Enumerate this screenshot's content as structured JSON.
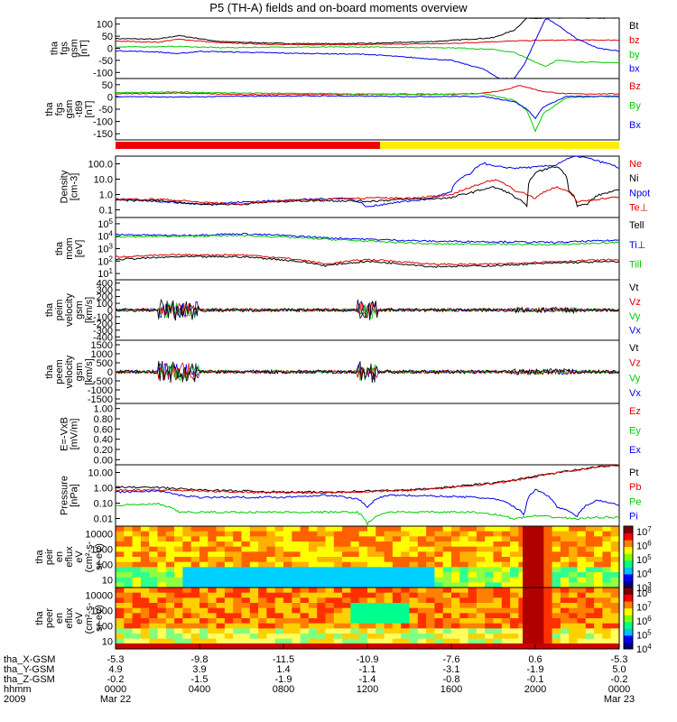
{
  "chart_data": {
    "title": "P5 (TH-A) fields and on-board moments overview",
    "panels": [
      {
        "id": "fgs",
        "type": "line",
        "ylabel": [
          "tha",
          "fgs",
          "gsm",
          "[nT]"
        ],
        "yticks": [
          "100",
          "50",
          "0",
          "-50",
          "-100"
        ],
        "ylim": [
          -100,
          100
        ],
        "legend": [
          {
            "name": "Bt",
            "color": "#000000"
          },
          {
            "name": "bz",
            "color": "#dd0000"
          },
          {
            "name": "by",
            "color": "#00cc00"
          },
          {
            "name": "bx",
            "color": "#0000ee"
          }
        ],
        "series": [
          {
            "name": "Bt",
            "color": "#000000",
            "x": [
              0,
              2,
              3,
              5,
              8,
              10,
              12,
              15,
              16,
              18,
              19,
              19.6,
              20.3,
              21,
              22,
              24
            ],
            "y": [
              32,
              30,
              42,
              22,
              16,
              15,
              16,
              22,
              26,
              35,
              60,
              100,
              100,
              100,
              100,
              100
            ]
          },
          {
            "name": "bz",
            "color": "#dd0000",
            "x": [
              0,
              2,
              3,
              5,
              8,
              12,
              16,
              18,
              20,
              22,
              24
            ],
            "y": [
              24,
              20,
              30,
              18,
              12,
              12,
              16,
              22,
              26,
              27,
              27
            ]
          },
          {
            "name": "by",
            "color": "#00cc00",
            "x": [
              0,
              3,
              5,
              8,
              12,
              16,
              18,
              19,
              19.5,
              20.5,
              21,
              22,
              24
            ],
            "y": [
              4,
              6,
              2,
              4,
              4,
              2,
              -4,
              -14,
              -30,
              -60,
              -40,
              -45,
              -48
            ]
          },
          {
            "name": "bx",
            "color": "#0000ee",
            "x": [
              0,
              2,
              3,
              4,
              8,
              12,
              16,
              17.5,
              18.3,
              19,
              19.5,
              20.5,
              21,
              22,
              23,
              24
            ],
            "y": [
              -8,
              -12,
              -18,
              -10,
              -16,
              -20,
              -40,
              -68,
              -100,
              -100,
              -50,
              100,
              80,
              30,
              0,
              -10
            ]
          }
        ]
      },
      {
        "id": "fgs_t89",
        "type": "line",
        "ylabel": [
          "tha",
          "fgs",
          "gsm",
          "-t89",
          "[nT]"
        ],
        "yticks": [
          "50",
          "0",
          "-50",
          "-100",
          "-150"
        ],
        "ylim": [
          -175,
          65
        ],
        "legend": [
          {
            "name": "Bz",
            "color": "#dd0000"
          },
          {
            "name": "By",
            "color": "#00cc00"
          },
          {
            "name": "Bx",
            "color": "#0000ee"
          }
        ],
        "series": [
          {
            "name": "Bz",
            "color": "#dd0000",
            "x": [
              0,
              3,
              6,
              10,
              14,
              16,
              17.5,
              18.5,
              19.3,
              20.3,
              21.5,
              24
            ],
            "y": [
              5,
              8,
              2,
              3,
              4,
              3,
              8,
              20,
              38,
              15,
              5,
              5
            ]
          },
          {
            "name": "By",
            "color": "#00cc00",
            "x": [
              0,
              3,
              6,
              10,
              14,
              16,
              17.5,
              19,
              19.6,
              20,
              20.4,
              21.5,
              24
            ],
            "y": [
              10,
              12,
              8,
              6,
              2,
              4,
              6,
              -20,
              -60,
              -140,
              -70,
              -10,
              -2
            ]
          },
          {
            "name": "Bx",
            "color": "#0000ee",
            "x": [
              0,
              3,
              6,
              10,
              14,
              16,
              17.5,
              19,
              19.6,
              20,
              20.4,
              21.5,
              24
            ],
            "y": [
              -5,
              -8,
              -4,
              -3,
              -5,
              -5,
              -5,
              -25,
              -55,
              -90,
              -45,
              -5,
              -5
            ]
          }
        ]
      },
      {
        "id": "density",
        "type": "line",
        "log": true,
        "ylabel": [
          "Density",
          "[cm-3]"
        ],
        "yticks": [
          "100.0",
          "10.0",
          "1.0",
          "0.1"
        ],
        "ylim": [
          0.05,
          200
        ],
        "legend": [
          {
            "name": "Ne",
            "color": "#dd0000"
          },
          {
            "name": "Ni",
            "color": "#000000"
          },
          {
            "name": "Npot",
            "color": "#0000ee"
          },
          {
            "name": "Te⊥",
            "color": "#dd0000"
          }
        ],
        "series": [
          {
            "name": "Npot",
            "color": "#0000ee",
            "x": [
              0,
              4,
              8,
              11,
              12,
              15,
              16,
              17,
              17.5,
              18,
              19,
              20,
              21,
              22,
              23,
              24
            ],
            "y": [
              0.6,
              0.3,
              0.5,
              0.7,
              0.2,
              0.6,
              1.5,
              20,
              80,
              50,
              40,
              45,
              60,
              200,
              100,
              40
            ]
          },
          {
            "name": "Ni",
            "color": "#000000",
            "x": [
              0,
              2,
              4,
              6,
              8,
              10,
              12,
              14,
              16,
              17,
              18,
              19,
              19.6,
              20,
              21,
              21.6,
              22,
              22.5,
              23,
              24
            ],
            "y": [
              0.5,
              0.5,
              0.3,
              0.3,
              0.45,
              0.5,
              0.45,
              0.6,
              0.7,
              1.5,
              3,
              0.8,
              0.2,
              20,
              50,
              2,
              0.25,
              0.3,
              1,
              2
            ]
          },
          {
            "name": "Ne",
            "color": "#dd0000",
            "x": [
              0,
              2,
              4,
              6,
              8,
              10,
              12,
              14,
              16,
              17,
              18,
              19,
              20,
              21,
              22,
              23,
              24
            ],
            "y": [
              0.6,
              0.6,
              0.4,
              0.3,
              0.5,
              0.6,
              0.7,
              0.7,
              1,
              3,
              8,
              2,
              0.6,
              3,
              0.4,
              0.6,
              0.8
            ]
          }
        ]
      },
      {
        "id": "temp",
        "type": "line",
        "log": true,
        "ylabel": [
          "tha",
          "mom",
          "[eV]"
        ],
        "yticks": [
          "10^5",
          "10^4",
          "10^3",
          "10^2",
          "10^1"
        ],
        "ylim": [
          10,
          100000
        ],
        "legend": [
          {
            "name": "Tell",
            "color": "#000000"
          },
          {
            "name": "Ti⊥",
            "color": "#0000ee"
          },
          {
            "name": "Till",
            "color": "#00cc00"
          }
        ],
        "series": [
          {
            "name": "Ti",
            "color": "#0000ee",
            "x": [
              0,
              3,
              6,
              10,
              12,
              15,
              18,
              21,
              24
            ],
            "y": [
              8000,
              7000,
              9000,
              5000,
              4000,
              3000,
              2800,
              2500,
              3500
            ]
          },
          {
            "name": "Till",
            "color": "#00cc00",
            "x": [
              0,
              3,
              6,
              10,
              12,
              15,
              18,
              21,
              24
            ],
            "y": [
              6000,
              6000,
              7000,
              4000,
              3000,
              2000,
              2000,
              1800,
              2500
            ]
          },
          {
            "name": "Te",
            "color": "#dd0000",
            "x": [
              0,
              3,
              6,
              10,
              12,
              15,
              18,
              21,
              24
            ],
            "y": [
              300,
              400,
              400,
              100,
              200,
              100,
              100,
              150,
              200
            ]
          },
          {
            "name": "Tell",
            "color": "#000000",
            "x": [
              0,
              3,
              6,
              10,
              12,
              15,
              18,
              21,
              24
            ],
            "y": [
              200,
              300,
              300,
              80,
              150,
              70,
              80,
              120,
              150
            ]
          }
        ]
      },
      {
        "id": "peim",
        "type": "spiky",
        "ylabel": [
          "tha",
          "peim",
          "velocity",
          "gsm",
          "[km/s]"
        ],
        "yticks": [
          "400",
          "300",
          "200",
          "100",
          "0",
          "-100",
          "-200",
          "-300",
          "-400"
        ],
        "ylim": [
          -400,
          400
        ],
        "legend": [
          {
            "name": "Vt",
            "color": "#000000"
          },
          {
            "name": "Vz",
            "color": "#dd0000"
          },
          {
            "name": "Vy",
            "color": "#00cc00"
          },
          {
            "name": "Vx",
            "color": "#0000ee"
          }
        ]
      },
      {
        "id": "peem",
        "type": "spiky",
        "ylabel": [
          "tha",
          "peem",
          "velocity",
          "gsm",
          "[km/s]"
        ],
        "yticks": [
          "1500",
          "1000",
          "500",
          "0",
          "-500",
          "-1000",
          "-1500"
        ],
        "ylim": [
          -1500,
          1500
        ],
        "legend": [
          {
            "name": "Vt",
            "color": "#000000"
          },
          {
            "name": "Vz",
            "color": "#dd0000"
          },
          {
            "name": "Vy",
            "color": "#00cc00"
          },
          {
            "name": "Vx",
            "color": "#0000ee"
          }
        ]
      },
      {
        "id": "efield",
        "type": "line",
        "ylabel": [
          "E=-VxB",
          "[mV/m]"
        ],
        "yticks": [
          "1.00",
          "0.80",
          "0.60",
          "0.40",
          "0.20",
          "0.00"
        ],
        "ylim": [
          0,
          1
        ],
        "legend": [
          {
            "name": "Ez",
            "color": "#dd0000"
          },
          {
            "name": "Ey",
            "color": "#00cc00"
          },
          {
            "name": "Ex",
            "color": "#0000ee"
          }
        ],
        "series": []
      },
      {
        "id": "pressure",
        "type": "line",
        "log": true,
        "ylabel": [
          "Pressure",
          "[nPa]"
        ],
        "yticks": [
          "10.00",
          "1.00",
          "0.10",
          "0.01"
        ],
        "ylim": [
          0.003,
          12
        ],
        "legend": [
          {
            "name": "Pt",
            "color": "#000000"
          },
          {
            "name": "Pb",
            "color": "#dd0000"
          },
          {
            "name": "Pe",
            "color": "#00cc00"
          },
          {
            "name": "Pi",
            "color": "#0000ee"
          }
        ],
        "series": [
          {
            "name": "Pt",
            "color": "#000000",
            "x": [
              0,
              2,
              4,
              6,
              8,
              10,
              12,
              14,
              16,
              18,
              19,
              20,
              21,
              22,
              24
            ],
            "y": [
              0.6,
              0.55,
              0.4,
              0.35,
              0.3,
              0.3,
              0.35,
              0.4,
              0.6,
              1,
              1.5,
              2.5,
              4,
              6,
              12
            ]
          },
          {
            "name": "Pb",
            "color": "#dd0000",
            "x": [
              0,
              2,
              4,
              6,
              8,
              10,
              12,
              14,
              16,
              18,
              19,
              20,
              21,
              22,
              24
            ],
            "y": [
              0.4,
              0.4,
              0.35,
              0.3,
              0.28,
              0.28,
              0.32,
              0.38,
              0.55,
              0.95,
              1.4,
              2.4,
              4,
              6,
              12
            ]
          },
          {
            "name": "Pi",
            "color": "#0000ee",
            "x": [
              0,
              2,
              3,
              4,
              6,
              8,
              10,
              11.5,
              12,
              13,
              15,
              17,
              18,
              19,
              19.5,
              20,
              21,
              22,
              23,
              24
            ],
            "y": [
              0.3,
              0.35,
              0.2,
              0.15,
              0.15,
              0.15,
              0.2,
              0.12,
              0.04,
              0.2,
              0.18,
              0.15,
              0.12,
              0.04,
              0.01,
              0.4,
              0.04,
              0.01,
              0.1,
              0.05
            ]
          },
          {
            "name": "Pe",
            "color": "#00cc00",
            "x": [
              0,
              2,
              3,
              4,
              6,
              8,
              10,
              11.5,
              12,
              13,
              15,
              17,
              18,
              19,
              20,
              21,
              22,
              23,
              24
            ],
            "y": [
              0.05,
              0.06,
              0.02,
              0.02,
              0.02,
              0.02,
              0.02,
              0.02,
              0.004,
              0.02,
              0.02,
              0.02,
              0.015,
              0.008,
              0.012,
              0.01,
              0.008,
              0.01,
              0.01
            ]
          }
        ]
      },
      {
        "id": "peir",
        "type": "heatmap",
        "ylabel": [
          "tha",
          "peir",
          "en",
          "eflux",
          "eV",
          "(cm²-s-",
          "sr-eV)"
        ],
        "yticks": [
          "10000",
          "1000",
          "100",
          "10"
        ],
        "colorbar": [
          "10^7",
          "10^6",
          "10^5",
          "10^4",
          "10^3"
        ]
      },
      {
        "id": "peer",
        "type": "heatmap",
        "ylabel": [
          "tha",
          "peer",
          "en",
          "eflux",
          "eV",
          "(cm²-s-",
          "sr-eV)"
        ],
        "yticks": [
          "10000",
          "1000",
          "100",
          "10"
        ],
        "colorbar": [
          "10^8",
          "10^7",
          "10^6",
          "10^5",
          "10^4"
        ]
      }
    ],
    "xaxis": {
      "xlim": [
        0,
        24
      ],
      "row_labels": [
        "tha_X-GSM",
        "tha_Y-GSM",
        "tha_Z-GSM",
        "hhmm",
        "2009"
      ],
      "ticks": [
        {
          "x": 0,
          "X": "-5.3",
          "Y": "4.9",
          "Z": "-0.2",
          "hhmm": "0000",
          "date": "Mar 22"
        },
        {
          "x": 4,
          "X": "-9.8",
          "Y": "3.9",
          "Z": "-1.5",
          "hhmm": "0400",
          "date": ""
        },
        {
          "x": 8,
          "X": "-11.5",
          "Y": "1.4",
          "Z": "-1.9",
          "hhmm": "0800",
          "date": ""
        },
        {
          "x": 12,
          "X": "-10.9",
          "Y": "-1.1",
          "Z": "-1.4",
          "hhmm": "1200",
          "date": ""
        },
        {
          "x": 16,
          "X": "-7.6",
          "Y": "-3.1",
          "Z": "-0.8",
          "hhmm": "1600",
          "date": ""
        },
        {
          "x": 20,
          "X": "0.6",
          "Y": "-1.9",
          "Z": "-0.1",
          "hhmm": "2000",
          "date": ""
        },
        {
          "x": 24,
          "X": "-5.3",
          "Y": "5.0",
          "Z": "-0.2",
          "hhmm": "0000",
          "date": "Mar 23"
        }
      ]
    },
    "mode_bar": {
      "red_end_hour": 12.6,
      "red_color": "#ee0000",
      "yellow_color": "#ffee00"
    }
  }
}
